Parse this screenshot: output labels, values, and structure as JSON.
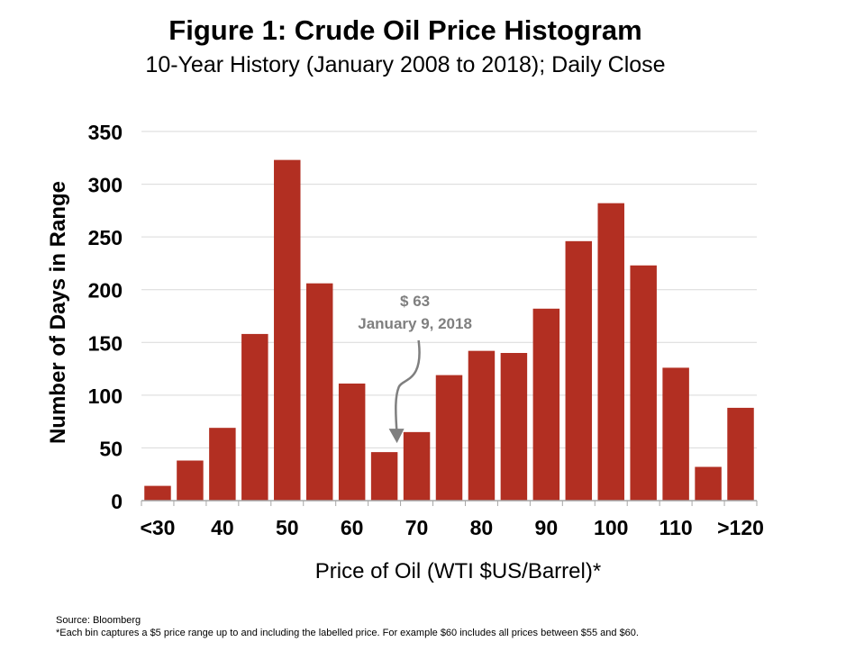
{
  "chart_data": {
    "type": "bar",
    "title": "Figure 1: Crude Oil Price Histogram",
    "subtitle": "10-Year History (January 2008 to 2018); Daily Close",
    "xlabel": "Price of Oil (WTI $US/Barrel)*",
    "ylabel": "Number of Days in Range",
    "ylim": [
      0,
      350
    ],
    "yticks": [
      0,
      50,
      100,
      150,
      200,
      250,
      300,
      350
    ],
    "grid": true,
    "bar_color": "#B22F22",
    "categories": [
      "<30",
      "35",
      "40",
      "45",
      "50",
      "55",
      "60",
      "65",
      "70",
      "75",
      "80",
      "85",
      "90",
      "95",
      "100",
      "105",
      "110",
      "115",
      ">120"
    ],
    "x_tick_labels": [
      {
        "bar_index": 0,
        "label": "<30"
      },
      {
        "bar_index": 2,
        "label": "40"
      },
      {
        "bar_index": 4,
        "label": "50"
      },
      {
        "bar_index": 6,
        "label": "60"
      },
      {
        "bar_index": 8,
        "label": "70"
      },
      {
        "bar_index": 10,
        "label": "80"
      },
      {
        "bar_index": 12,
        "label": "90"
      },
      {
        "bar_index": 14,
        "label": "100"
      },
      {
        "bar_index": 16,
        "label": "110"
      },
      {
        "bar_index": 18,
        "label": ">120"
      }
    ],
    "values": [
      14,
      38,
      69,
      158,
      323,
      206,
      111,
      46,
      65,
      119,
      142,
      140,
      182,
      246,
      282,
      223,
      126,
      32,
      88
    ],
    "annotation": {
      "line1": "$ 63",
      "line2": "January 9, 2018",
      "bar_index": 7,
      "color": "#7F7F7F"
    }
  },
  "footer": {
    "source": "Source: Bloomberg",
    "note": "*Each bin captures a $5 price range up to and including the labelled price. For example $60 includes all prices between $55 and $60."
  }
}
